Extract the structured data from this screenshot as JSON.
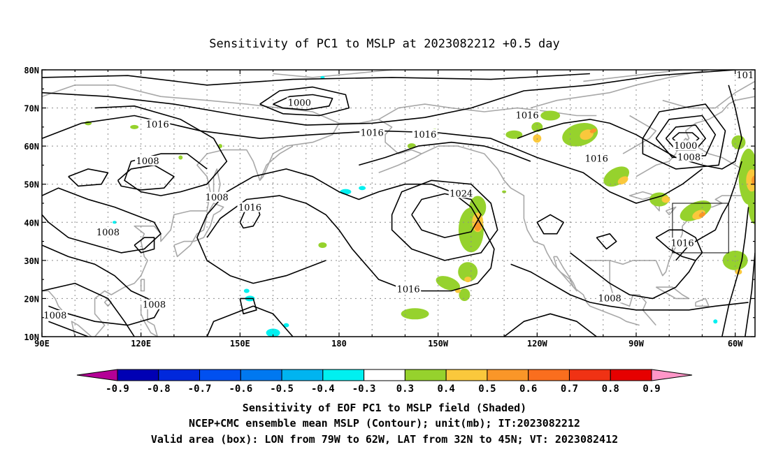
{
  "title": "Sensitivity of PC1 to MSLP at 2023082212 +0.5 day",
  "axes": {
    "lat_labels": [
      "80N",
      "70N",
      "60N",
      "50N",
      "40N",
      "30N",
      "20N",
      "10N"
    ],
    "lon_labels": [
      "90E",
      "120E",
      "150E",
      "180",
      "150W",
      "120W",
      "90W",
      "60W"
    ]
  },
  "contour_labels": [
    {
      "text": "1000",
      "lon": 168,
      "lat": 71.3
    },
    {
      "text": "1016",
      "lon": 125,
      "lat": 65.6
    },
    {
      "text": "1016",
      "lon": 190,
      "lat": 63.4
    },
    {
      "text": "1016",
      "lon": 206,
      "lat": 63.0
    },
    {
      "text": "1016",
      "lon": 237,
      "lat": 68.0
    },
    {
      "text": "1000",
      "lon": 285,
      "lat": 60.0
    },
    {
      "text": "1008",
      "lon": 286,
      "lat": 57.0
    },
    {
      "text": "1016",
      "lon": 258,
      "lat": 56.6
    },
    {
      "text": "1008",
      "lon": 122,
      "lat": 56.0
    },
    {
      "text": "1008",
      "lon": 143,
      "lat": 46.5
    },
    {
      "text": "1016",
      "lon": 153,
      "lat": 43.8
    },
    {
      "text": "1024",
      "lon": 217,
      "lat": 47.5
    },
    {
      "text": "1008",
      "lon": 110,
      "lat": 37.3
    },
    {
      "text": "1016",
      "lon": 284,
      "lat": 34.5
    },
    {
      "text": "1016",
      "lon": 201,
      "lat": 22.4
    },
    {
      "text": "1008",
      "lon": 262,
      "lat": 20.0
    },
    {
      "text": "1008",
      "lon": 124,
      "lat": 18.3
    },
    {
      "text": "1008",
      "lon": 94,
      "lat": 15.5
    },
    {
      "text": "101",
      "lon": 303,
      "lat": 78.5
    }
  ],
  "colorbar": {
    "labels": [
      "-0.9",
      "-0.8",
      "-0.7",
      "-0.6",
      "-0.5",
      "-0.4",
      "-0.3",
      "0.3",
      "0.4",
      "0.5",
      "0.6",
      "0.7",
      "0.8",
      "0.9"
    ],
    "colors": [
      "#b40096",
      "#0000b4",
      "#0028dc",
      "#0050f0",
      "#0078f0",
      "#00b4f0",
      "#00f0f0",
      "#ffffff",
      "#96d22d",
      "#fac83c",
      "#fa9628",
      "#fa6e1e",
      "#f03214",
      "#e60000",
      "#ff96c8"
    ]
  },
  "colors": {
    "contour": "#000000",
    "coastline": "#a8a8a8",
    "grid": "#8c8c8c",
    "shade_green": "#96d22d",
    "shade_yellow": "#fac83c",
    "shade_orange": "#fa9628",
    "shade_cyan": "#00f0f0"
  },
  "valid_area": {
    "lon_min": -79,
    "lon_max": -62,
    "lat_min": 32,
    "lat_max": 45
  },
  "captions": [
    "Sensitivity of EOF PC1 to MSLP field (Shaded)",
    "NCEP+CMC ensemble mean MSLP (Contour); unit(mb); IT:2023082212",
    "Valid area (box): LON from 79W to 62W, LAT from 32N to 45N; VT: 2023082412"
  ]
}
